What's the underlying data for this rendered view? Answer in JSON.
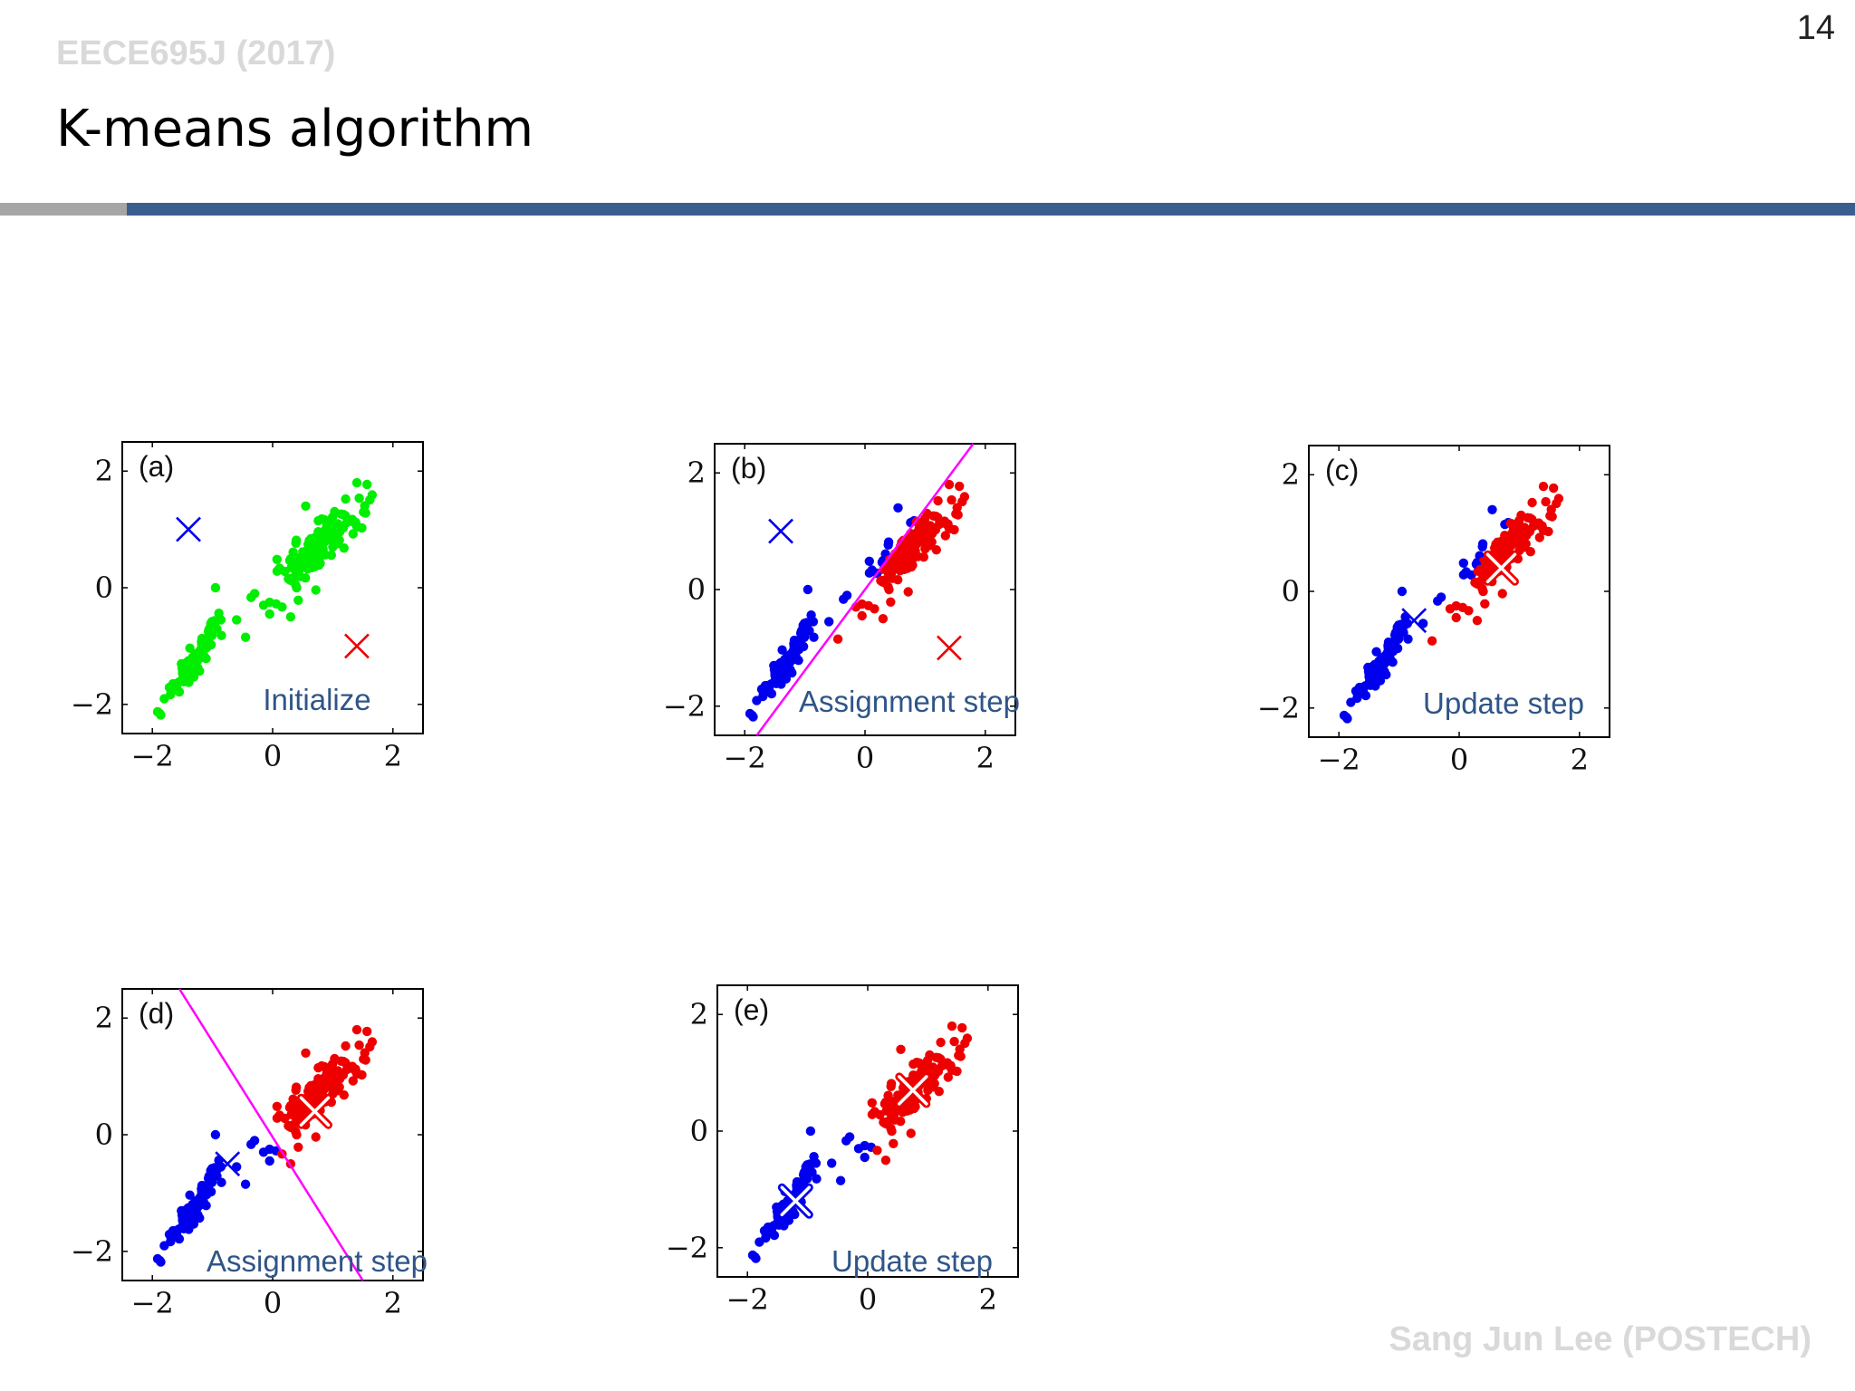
{
  "header": {
    "course": "EECE695J (2017)",
    "page_number": "14",
    "title": "K-means algorithm"
  },
  "footer": {
    "author": "Sang Jun Lee (POSTECH)"
  },
  "colors": {
    "green": "#00ee00",
    "blue": "#0000ee",
    "red": "#ee0000",
    "boundary": "#ff00ff",
    "rule_blue": "#3a5f8f",
    "rule_gray": "#a6a6a6",
    "caption": "#2f5587"
  },
  "chart_data": [
    {
      "type": "scatter",
      "panel_label": "(a)",
      "caption": "Initialize",
      "xlim": [
        -2.5,
        2.5
      ],
      "ylim": [
        -2.5,
        2.5
      ],
      "xticks": [
        "−2",
        "0",
        "2"
      ],
      "yticks": [
        "2",
        "0",
        "−2"
      ],
      "coloring": "all-green",
      "centroids": [
        {
          "x": -1.4,
          "y": 1.0,
          "color": "blue",
          "style": "plain"
        },
        {
          "x": 1.4,
          "y": -1.0,
          "color": "red",
          "style": "plain"
        }
      ],
      "boundary": null
    },
    {
      "type": "scatter",
      "panel_label": "(b)",
      "caption": "Assignment step",
      "xlim": [
        -2.5,
        2.5
      ],
      "ylim": [
        -2.5,
        2.5
      ],
      "xticks": [
        "−2",
        "0",
        "2"
      ],
      "yticks": [
        "2",
        "0",
        "−2"
      ],
      "coloring": "line-b",
      "centroids": [
        {
          "x": -1.4,
          "y": 1.0,
          "color": "blue",
          "style": "plain"
        },
        {
          "x": 1.4,
          "y": -1.0,
          "color": "red",
          "style": "plain"
        }
      ],
      "boundary": [
        [
          -1.8,
          -2.5
        ],
        [
          1.8,
          2.5
        ]
      ]
    },
    {
      "type": "scatter",
      "panel_label": "(c)",
      "caption": "Update step",
      "xlim": [
        -2.5,
        2.5
      ],
      "ylim": [
        -2.5,
        2.5
      ],
      "xticks": [
        "−2",
        "0",
        "2"
      ],
      "yticks": [
        "2",
        "0",
        "−2"
      ],
      "coloring": "line-b",
      "centroids": [
        {
          "x": -0.75,
          "y": -0.5,
          "color": "blue",
          "style": "plain"
        },
        {
          "x": 0.7,
          "y": 0.4,
          "color": "red",
          "style": "outlined"
        }
      ],
      "boundary": null
    },
    {
      "type": "scatter",
      "panel_label": "(d)",
      "caption": "Assignment step",
      "xlim": [
        -2.5,
        2.5
      ],
      "ylim": [
        -2.5,
        2.5
      ],
      "xticks": [
        "−2",
        "0",
        "2"
      ],
      "yticks": [
        "2",
        "0",
        "−2"
      ],
      "coloring": "line-d",
      "centroids": [
        {
          "x": -0.75,
          "y": -0.5,
          "color": "blue",
          "style": "plain"
        },
        {
          "x": 0.7,
          "y": 0.4,
          "color": "red",
          "style": "outlined"
        }
      ],
      "boundary": [
        [
          -1.55,
          2.5
        ],
        [
          1.5,
          -2.5
        ]
      ]
    },
    {
      "type": "scatter",
      "panel_label": "(e)",
      "caption": "Update step",
      "xlim": [
        -2.5,
        2.5
      ],
      "ylim": [
        -2.5,
        2.5
      ],
      "xticks": [
        "−2",
        "0",
        "2"
      ],
      "yticks": [
        "2",
        "0",
        "−2"
      ],
      "coloring": "line-d",
      "centroids": [
        {
          "x": -1.2,
          "y": -1.2,
          "color": "blue",
          "style": "outlined"
        },
        {
          "x": 0.75,
          "y": 0.7,
          "color": "red",
          "style": "outlined"
        }
      ],
      "boundary": null
    }
  ]
}
